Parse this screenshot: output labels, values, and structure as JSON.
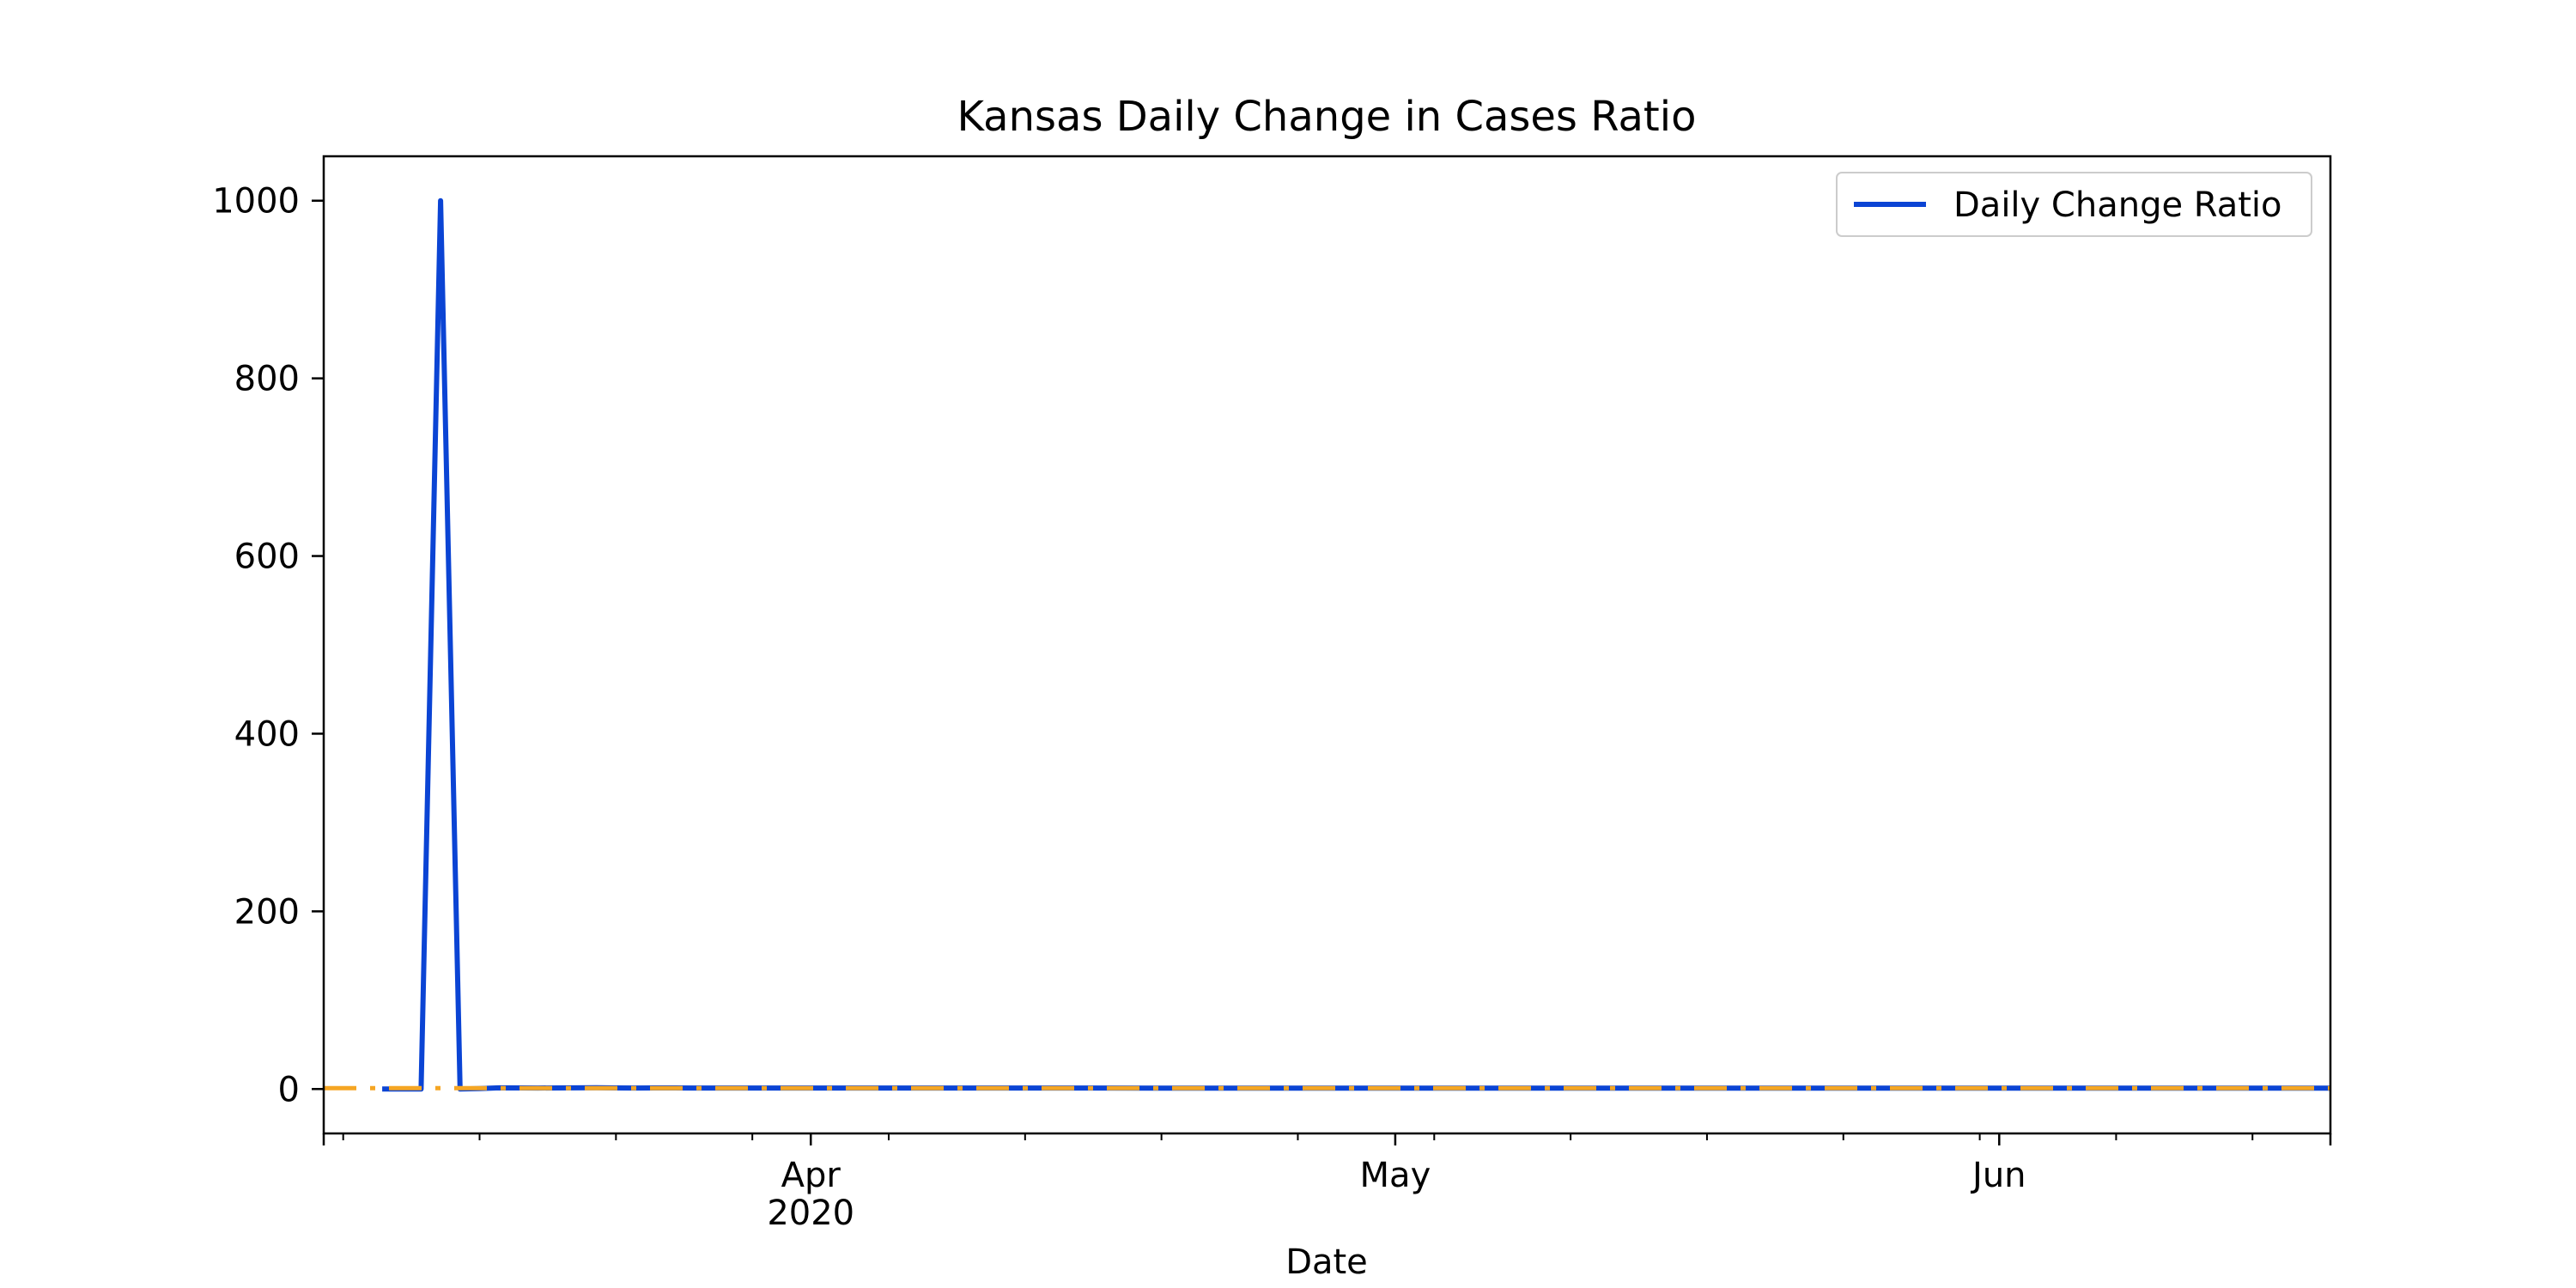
{
  "chart_data": {
    "type": "line",
    "title": "Kansas Daily Change in Cases Ratio",
    "xlabel": "Date",
    "ylabel": "",
    "xlim": [
      "2020-03-07",
      "2020-06-18"
    ],
    "ylim": [
      -50,
      1050
    ],
    "x_tick_labels": [
      {
        "date": "2020-04-01",
        "label": "Apr",
        "sublabel": "2020"
      },
      {
        "date": "2020-05-01",
        "label": "May",
        "sublabel": ""
      },
      {
        "date": "2020-06-01",
        "label": "Jun",
        "sublabel": ""
      }
    ],
    "x_minor_tick_dates": [
      "2020-03-08",
      "2020-03-15",
      "2020-03-22",
      "2020-03-29",
      "2020-04-05",
      "2020-04-12",
      "2020-04-19",
      "2020-04-26",
      "2020-05-03",
      "2020-05-10",
      "2020-05-17",
      "2020-05-24",
      "2020-05-31",
      "2020-06-07",
      "2020-06-14"
    ],
    "y_ticks": [
      0,
      200,
      400,
      600,
      800,
      1000
    ],
    "grid": false,
    "legend_position": "top-right",
    "series": [
      {
        "name": "Daily Change Ratio",
        "color": "#0b44d4",
        "style": "solid",
        "points": [
          [
            "2020-03-10",
            0
          ],
          [
            "2020-03-11",
            0
          ],
          [
            "2020-03-12",
            0
          ],
          [
            "2020-03-13",
            1000
          ],
          [
            "2020-03-14",
            0
          ],
          [
            "2020-03-15",
            0.5
          ],
          [
            "2020-03-16",
            1.3
          ],
          [
            "2020-03-17",
            1.2
          ],
          [
            "2020-03-18",
            1.1
          ],
          [
            "2020-03-19",
            1.2
          ],
          [
            "2020-03-20",
            1.3
          ],
          [
            "2020-03-21",
            1.5
          ],
          [
            "2020-03-22",
            1.2
          ],
          [
            "2020-03-23",
            1.1
          ],
          [
            "2020-03-24",
            1.2
          ],
          [
            "2020-03-25",
            1.2
          ],
          [
            "2020-03-26",
            1.1
          ],
          [
            "2020-03-27",
            1.1
          ],
          [
            "2020-03-28",
            1.1
          ],
          [
            "2020-03-29",
            1.1
          ],
          [
            "2020-04-05",
            1.1
          ],
          [
            "2020-04-12",
            1.1
          ],
          [
            "2020-04-19",
            1.0
          ],
          [
            "2020-04-26",
            1.0
          ],
          [
            "2020-05-03",
            1.0
          ],
          [
            "2020-05-10",
            1.0
          ],
          [
            "2020-05-17",
            1.0
          ],
          [
            "2020-05-24",
            1.0
          ],
          [
            "2020-05-31",
            1.0
          ],
          [
            "2020-06-07",
            1.0
          ],
          [
            "2020-06-14",
            1.0
          ],
          [
            "2020-06-18",
            1.0
          ]
        ]
      },
      {
        "name": "",
        "color": "#f5a623",
        "style": "dashdot",
        "points": [
          [
            "2020-03-07",
            1
          ],
          [
            "2020-06-18",
            1
          ]
        ]
      }
    ]
  }
}
